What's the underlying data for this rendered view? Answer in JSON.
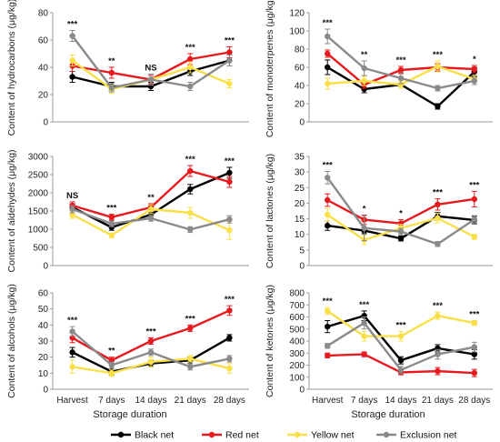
{
  "figure": {
    "x_categories": [
      "Harvest",
      "7 days",
      "14 days",
      "21 days",
      "28 days"
    ],
    "xlabel_left": "Storage duration",
    "xlabel_right": "Storage duration"
  },
  "legend": [
    {
      "name": "Black net",
      "color": "#000000"
    },
    {
      "name": "Red net",
      "color": "#e8191e"
    },
    {
      "name": "Yellow net",
      "color": "#f9e04a"
    },
    {
      "name": "Exclusion net",
      "color": "#8a8a8a"
    }
  ],
  "chart_data": [
    {
      "type": "line",
      "ylabel": "Content of hydrocarbons (μg/kg)",
      "ylim": [
        0,
        80
      ],
      "yticks": [
        0,
        20,
        40,
        60,
        80
      ],
      "categories": [
        "Harvest",
        "7 days",
        "14 days",
        "21 days",
        "28 days"
      ],
      "significance": [
        "***",
        "**",
        "NS",
        "***",
        "***"
      ],
      "series": [
        {
          "name": "Black net",
          "values": [
            33,
            26,
            26,
            37,
            45
          ],
          "errors": [
            4,
            3,
            3,
            3,
            4
          ]
        },
        {
          "name": "Red net",
          "values": [
            41,
            36,
            31,
            46,
            51
          ],
          "errors": [
            4,
            4,
            3,
            4,
            4
          ]
        },
        {
          "name": "Yellow net",
          "values": [
            45,
            24,
            31,
            40,
            28
          ],
          "errors": [
            4,
            3,
            4,
            4,
            3
          ]
        },
        {
          "name": "Exclusion net",
          "values": [
            63,
            25,
            31,
            26,
            45
          ],
          "errors": [
            4,
            3,
            4,
            3,
            4
          ]
        }
      ]
    },
    {
      "type": "line",
      "ylabel": "Content of monoterpenes (μg/kg)",
      "ylim": [
        0,
        120
      ],
      "yticks": [
        0,
        20,
        40,
        60,
        80,
        100,
        120
      ],
      "categories": [
        "Harvest",
        "7 days",
        "14 days",
        "21 days",
        "28 days"
      ],
      "significance": [
        "***",
        "**",
        "***",
        "***",
        "*"
      ],
      "series": [
        {
          "name": "Black net",
          "values": [
            60,
            36,
            41,
            17,
            55
          ],
          "errors": [
            8,
            4,
            4,
            3,
            5
          ]
        },
        {
          "name": "Red net",
          "values": [
            75,
            41,
            57,
            60,
            58
          ],
          "errors": [
            4,
            4,
            4,
            4,
            4
          ]
        },
        {
          "name": "Yellow net",
          "values": [
            42,
            45,
            41,
            61,
            47
          ],
          "errors": [
            6,
            5,
            4,
            6,
            4
          ]
        },
        {
          "name": "Exclusion net",
          "values": [
            94,
            59,
            48,
            37,
            45
          ],
          "errors": [
            8,
            8,
            6,
            3,
            4
          ]
        }
      ]
    },
    {
      "type": "line",
      "ylabel": "Content of aldehydes (μg/kg)",
      "ylim": [
        0,
        3000
      ],
      "yticks": [
        0,
        500,
        1000,
        1500,
        2000,
        2500,
        3000
      ],
      "categories": [
        "Harvest",
        "7 days",
        "14 days",
        "21 days",
        "28 days"
      ],
      "significance": [
        "NS",
        "***",
        "**",
        "***",
        "***"
      ],
      "series": [
        {
          "name": "Black net",
          "values": [
            1600,
            1050,
            1400,
            2100,
            2550
          ],
          "errors": [
            100,
            80,
            100,
            130,
            150
          ]
        },
        {
          "name": "Red net",
          "values": [
            1650,
            1330,
            1600,
            2600,
            2300
          ],
          "errors": [
            100,
            80,
            100,
            150,
            150
          ]
        },
        {
          "name": "Yellow net",
          "values": [
            1400,
            830,
            1550,
            1450,
            970
          ],
          "errors": [
            100,
            60,
            120,
            150,
            250
          ]
        },
        {
          "name": "Exclusion net",
          "values": [
            1550,
            1150,
            1300,
            990,
            1270
          ],
          "errors": [
            100,
            80,
            80,
            80,
            100
          ]
        }
      ]
    },
    {
      "type": "line",
      "ylabel": "Content of lactones (μg/kg)",
      "ylim": [
        0,
        35
      ],
      "yticks": [
        0,
        5,
        10,
        15,
        20,
        25,
        30,
        35
      ],
      "categories": [
        "Harvest",
        "7 days",
        "14 days",
        "21 days",
        "28 days"
      ],
      "significance": [
        "***",
        "*",
        "*",
        "***",
        "***"
      ],
      "series": [
        {
          "name": "Black net",
          "values": [
            12.8,
            11.2,
            8.7,
            15.8,
            14.6
          ],
          "errors": [
            1.5,
            1.0,
            0.8,
            1.2,
            1.2
          ]
        },
        {
          "name": "Red net",
          "values": [
            21,
            14.7,
            13.5,
            19.6,
            21.3
          ],
          "errors": [
            2.0,
            1.5,
            1.2,
            1.8,
            2.5
          ]
        },
        {
          "name": "Yellow net",
          "values": [
            16.3,
            8.2,
            12,
            15.2,
            9.2
          ],
          "errors": [
            2.0,
            1.5,
            1.2,
            1.5,
            0.8
          ]
        },
        {
          "name": "Exclusion net",
          "values": [
            28.2,
            12,
            10.9,
            6.9,
            14.8
          ],
          "errors": [
            2.0,
            4.0,
            1.0,
            0.8,
            1.2
          ]
        }
      ]
    },
    {
      "type": "line",
      "ylabel": "Content of alcohols (μg/kg)",
      "ylim": [
        0,
        60
      ],
      "yticks": [
        0,
        10,
        20,
        30,
        40,
        50,
        60
      ],
      "categories": [
        "Harvest",
        "7 days",
        "14 days",
        "21 days",
        "28 days"
      ],
      "significance": [
        "***",
        "**",
        "***",
        "***",
        "***"
      ],
      "series": [
        {
          "name": "Black net",
          "values": [
            23,
            11,
            16,
            18,
            32
          ],
          "errors": [
            3,
            2,
            2,
            2,
            2
          ]
        },
        {
          "name": "Red net",
          "values": [
            32,
            18,
            30,
            38,
            49
          ],
          "errors": [
            3,
            2,
            2,
            2,
            3
          ]
        },
        {
          "name": "Yellow net",
          "values": [
            14,
            10,
            17,
            19,
            13
          ],
          "errors": [
            4,
            2,
            3,
            2,
            3
          ]
        },
        {
          "name": "Exclusion net",
          "values": [
            36,
            15,
            23,
            14,
            19
          ],
          "errors": [
            3,
            2,
            2,
            2,
            2
          ]
        }
      ]
    },
    {
      "type": "line",
      "ylabel": "Content of ketones (μg/kg)",
      "ylim": [
        0,
        800
      ],
      "yticks": [
        0,
        100,
        200,
        300,
        400,
        500,
        600,
        700,
        800
      ],
      "categories": [
        "Harvest",
        "7 days",
        "14 days",
        "21 days",
        "28 days"
      ],
      "significance": [
        "***",
        "***",
        "***",
        "***",
        "***"
      ],
      "series": [
        {
          "name": "Black net",
          "values": [
            520,
            610,
            240,
            340,
            290
          ],
          "errors": [
            50,
            40,
            30,
            30,
            40
          ]
        },
        {
          "name": "Red net",
          "values": [
            280,
            290,
            140,
            150,
            135
          ],
          "errors": [
            20,
            20,
            20,
            30,
            30
          ]
        },
        {
          "name": "Yellow net",
          "values": [
            650,
            440,
            440,
            610,
            550
          ],
          "errors": [
            30,
            40,
            40,
            30,
            20
          ]
        },
        {
          "name": "Exclusion net",
          "values": [
            360,
            550,
            160,
            290,
            350
          ],
          "errors": [
            20,
            50,
            30,
            40,
            40
          ]
        }
      ]
    }
  ]
}
